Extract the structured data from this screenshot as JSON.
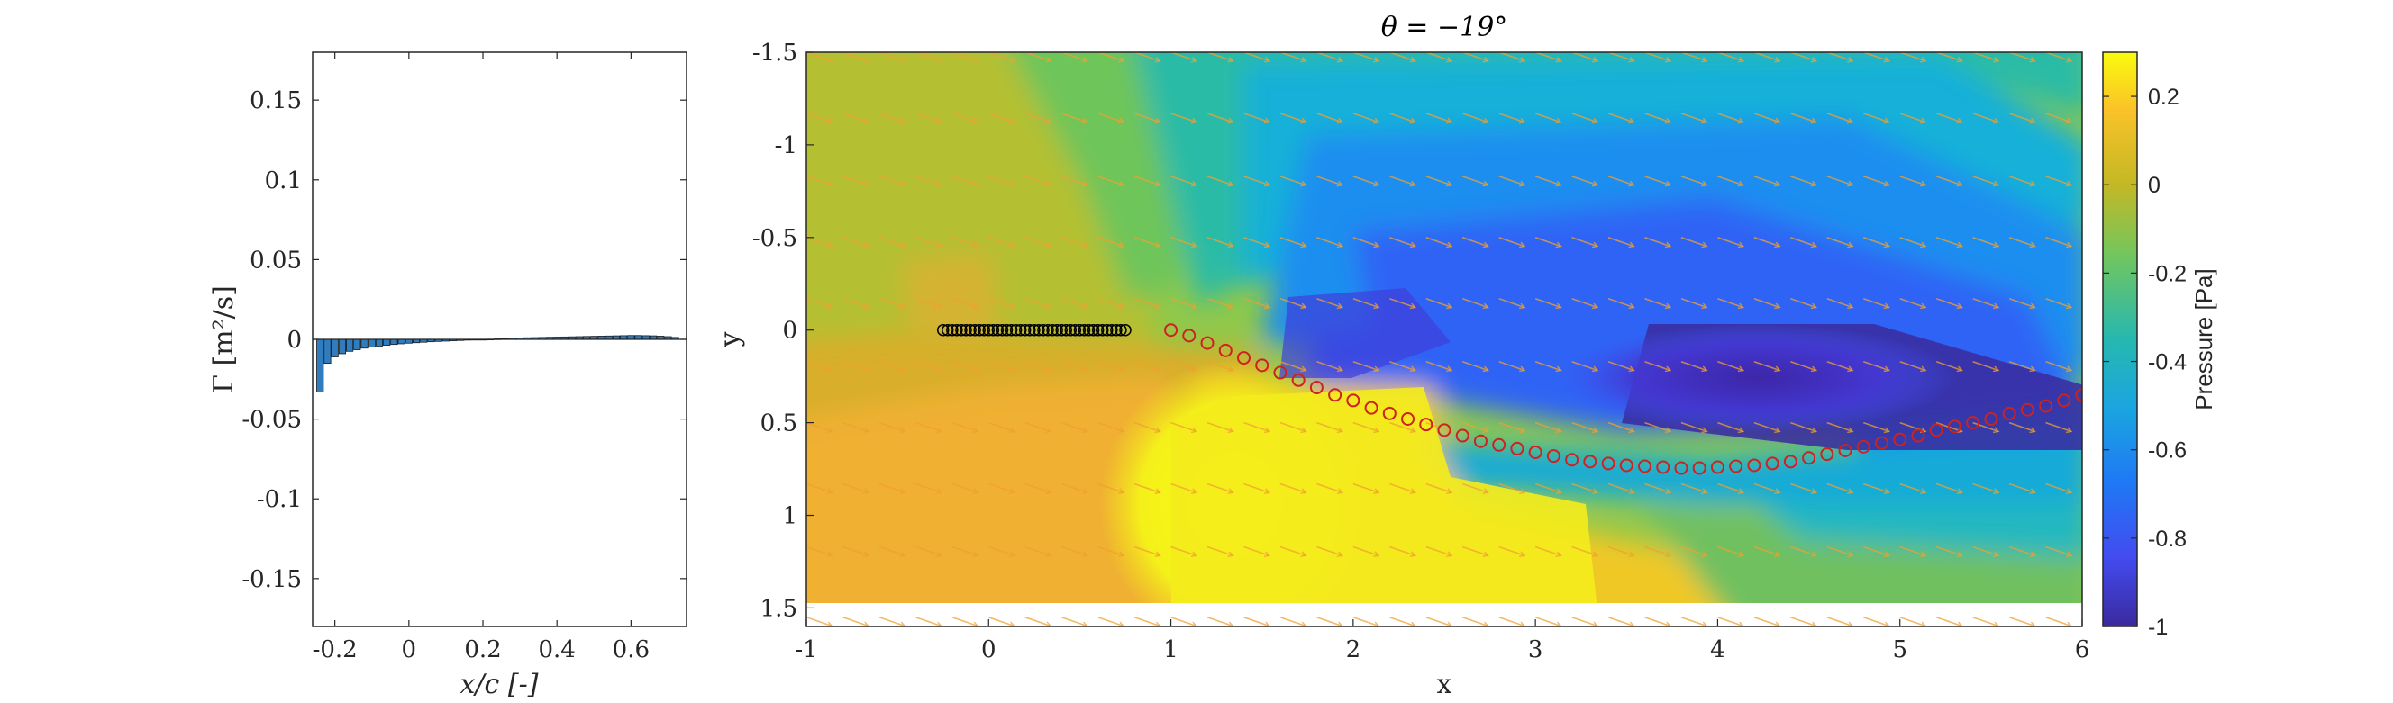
{
  "chart_data": [
    {
      "type": "bar",
      "panel": "left",
      "xlabel": "x/c [-]",
      "ylabel": "Γ [m²/s]",
      "xlim": [
        -0.26,
        0.75
      ],
      "ylim": [
        -0.18,
        0.18
      ],
      "xticks": [
        -0.2,
        0,
        0.2,
        0.4,
        0.6
      ],
      "xtick_labels": [
        "-0.2",
        "0",
        "0.2",
        "0.4",
        "0.6"
      ],
      "yticks": [
        -0.15,
        -0.1,
        -0.05,
        0,
        0.05,
        0.1,
        0.15
      ],
      "ytick_labels": [
        "-0.15",
        "-0.1",
        "-0.05",
        "0",
        "0.05",
        "0.1",
        "0.15"
      ],
      "bar_color": "#2f7cbf",
      "x": [
        -0.24,
        -0.22,
        -0.2,
        -0.18,
        -0.16,
        -0.14,
        -0.12,
        -0.1,
        -0.08,
        -0.06,
        -0.04,
        -0.02,
        0.0,
        0.02,
        0.04,
        0.06,
        0.08,
        0.1,
        0.12,
        0.14,
        0.16,
        0.18,
        0.2,
        0.22,
        0.24,
        0.26,
        0.28,
        0.3,
        0.32,
        0.34,
        0.36,
        0.38,
        0.4,
        0.42,
        0.44,
        0.46,
        0.48,
        0.5,
        0.52,
        0.54,
        0.56,
        0.58,
        0.6,
        0.62,
        0.64,
        0.66,
        0.68,
        0.7,
        0.72
      ],
      "values": [
        -0.033,
        -0.015,
        -0.011,
        -0.009,
        -0.0075,
        -0.0065,
        -0.0055,
        -0.0048,
        -0.0042,
        -0.0037,
        -0.0032,
        -0.0028,
        -0.0024,
        -0.0021,
        -0.0018,
        -0.0015,
        -0.0013,
        -0.0011,
        -0.0009,
        -0.0007,
        -0.0005,
        -0.0003,
        -0.0001,
        0.0001,
        0.0003,
        0.0005,
        0.0007,
        0.0009,
        0.001,
        0.0011,
        0.0012,
        0.0013,
        0.0014,
        0.0015,
        0.0016,
        0.0017,
        0.0018,
        0.0019,
        0.002,
        0.0021,
        0.0022,
        0.0023,
        0.0024,
        0.0024,
        0.0023,
        0.0022,
        0.002,
        0.0017,
        0.0012
      ]
    },
    {
      "type": "heatmap",
      "panel": "right",
      "title": "θ = −19°",
      "xlabel": "x",
      "ylabel": "y",
      "xlim": [
        -1,
        6
      ],
      "ylim": [
        1.6,
        -1.5
      ],
      "y_reversed": true,
      "xticks": [
        -1,
        0,
        1,
        2,
        3,
        4,
        5,
        6
      ],
      "xtick_labels": [
        "-1",
        "0",
        "1",
        "2",
        "3",
        "4",
        "5",
        "6"
      ],
      "yticks": [
        -1.5,
        -1,
        -0.5,
        0,
        0.5,
        1,
        1.5
      ],
      "ytick_labels": [
        "-1.5",
        "-1",
        "-0.5",
        "0",
        "0.5",
        "1",
        "1.5"
      ],
      "colorbar": {
        "label": "Pressure [Pa]",
        "range": [
          -1,
          0.3
        ],
        "ticks": [
          0.2,
          0,
          -0.2,
          -0.4,
          -0.6,
          -0.8,
          -1
        ],
        "tick_labels": [
          "0.2",
          "0",
          "-0.2",
          "-0.4",
          "-0.6",
          "-0.8",
          "-1"
        ],
        "colormap": "parula"
      },
      "plate_markers": {
        "color": "#000000",
        "x_start": -0.25,
        "x_end": 0.75,
        "y": 0,
        "count": 41
      },
      "wake_markers": {
        "color": "#cc2222",
        "x": [
          1.0,
          1.1,
          1.2,
          1.3,
          1.4,
          1.5,
          1.6,
          1.7,
          1.8,
          1.9,
          2.0,
          2.1,
          2.2,
          2.3,
          2.4,
          2.5,
          2.6,
          2.7,
          2.8,
          2.9,
          3.0,
          3.1,
          3.2,
          3.3,
          3.4,
          3.5,
          3.6,
          3.7,
          3.8,
          3.9,
          4.0,
          4.1,
          4.2,
          4.3,
          4.4,
          4.5,
          4.6,
          4.7,
          4.8,
          4.9,
          5.0,
          5.1,
          5.2,
          5.3,
          5.4,
          5.5,
          5.6,
          5.7,
          5.8,
          5.9,
          6.0
        ],
        "y": [
          0.0,
          0.03,
          0.07,
          0.11,
          0.15,
          0.19,
          0.23,
          0.27,
          0.31,
          0.35,
          0.38,
          0.42,
          0.45,
          0.48,
          0.51,
          0.54,
          0.57,
          0.6,
          0.62,
          0.64,
          0.66,
          0.68,
          0.7,
          0.71,
          0.72,
          0.73,
          0.735,
          0.74,
          0.745,
          0.745,
          0.74,
          0.735,
          0.73,
          0.72,
          0.71,
          0.69,
          0.67,
          0.65,
          0.63,
          0.61,
          0.59,
          0.57,
          0.54,
          0.52,
          0.5,
          0.48,
          0.45,
          0.43,
          0.41,
          0.38,
          0.35
        ]
      },
      "arrows": {
        "color": "#f0a030",
        "direction_deg": 19
      }
    }
  ]
}
